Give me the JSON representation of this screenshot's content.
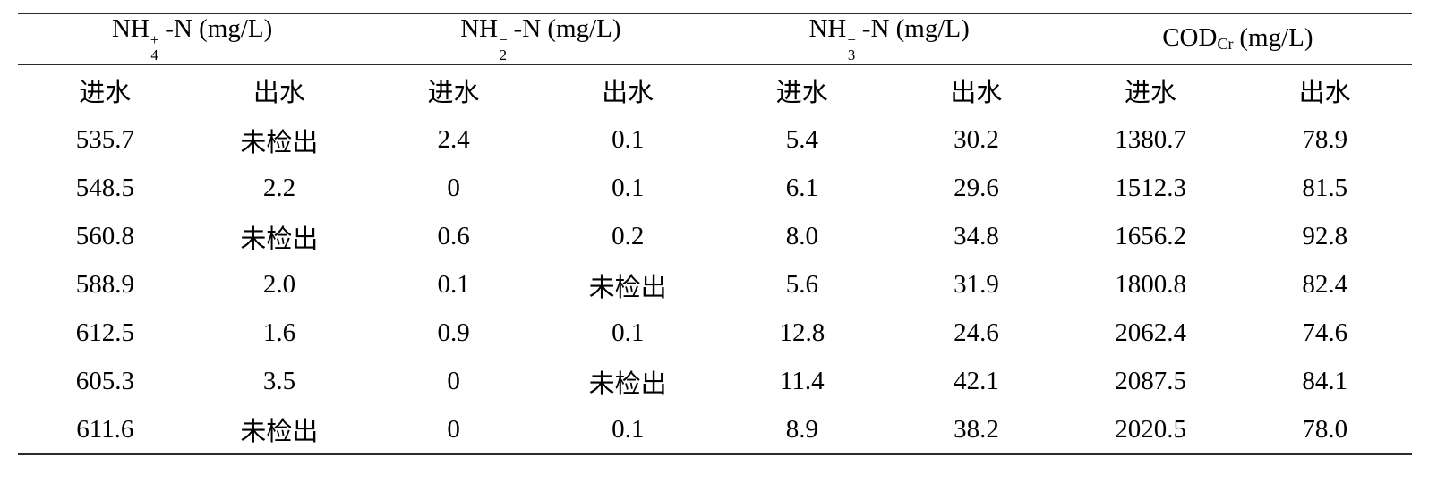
{
  "page": {
    "background": "#ffffff",
    "text_color": "#000000",
    "rule_color": "#2b2b2b"
  },
  "table": {
    "column_groups": [
      {
        "base": "NH",
        "sub": "4",
        "sup": "+",
        "rest": "-N (mg/L)"
      },
      {
        "base": "NH",
        "sub": "2",
        "sup": "−",
        "rest": "-N (mg/L)"
      },
      {
        "base": "NH",
        "sub": "3",
        "sup": "−",
        "rest": "-N (mg/L)"
      },
      {
        "base": "COD",
        "sub": "Cr",
        "rest": "(mg/L)"
      }
    ],
    "sub_headers": [
      "进水",
      "出水",
      "进水",
      "出水",
      "进水",
      "出水",
      "进水",
      "出水"
    ],
    "rows": [
      [
        "535.7",
        "未检出",
        "2.4",
        "0.1",
        "5.4",
        "30.2",
        "1380.7",
        "78.9"
      ],
      [
        "548.5",
        "2.2",
        "0",
        "0.1",
        "6.1",
        "29.6",
        "1512.3",
        "81.5"
      ],
      [
        "560.8",
        "未检出",
        "0.6",
        "0.2",
        "8.0",
        "34.8",
        "1656.2",
        "92.8"
      ],
      [
        "588.9",
        "2.0",
        "0.1",
        "未检出",
        "5.6",
        "31.9",
        "1800.8",
        "82.4"
      ],
      [
        "612.5",
        "1.6",
        "0.9",
        "0.1",
        "12.8",
        "24.6",
        "2062.4",
        "74.6"
      ],
      [
        "605.3",
        "3.5",
        "0",
        "未检出",
        "11.4",
        "42.1",
        "2087.5",
        "84.1"
      ],
      [
        "611.6",
        "未检出",
        "0",
        "0.1",
        "8.9",
        "38.2",
        "2020.5",
        "78.0"
      ]
    ],
    "not_detected_label": "未检出",
    "influent_label": "进水",
    "effluent_label": "出水"
  }
}
